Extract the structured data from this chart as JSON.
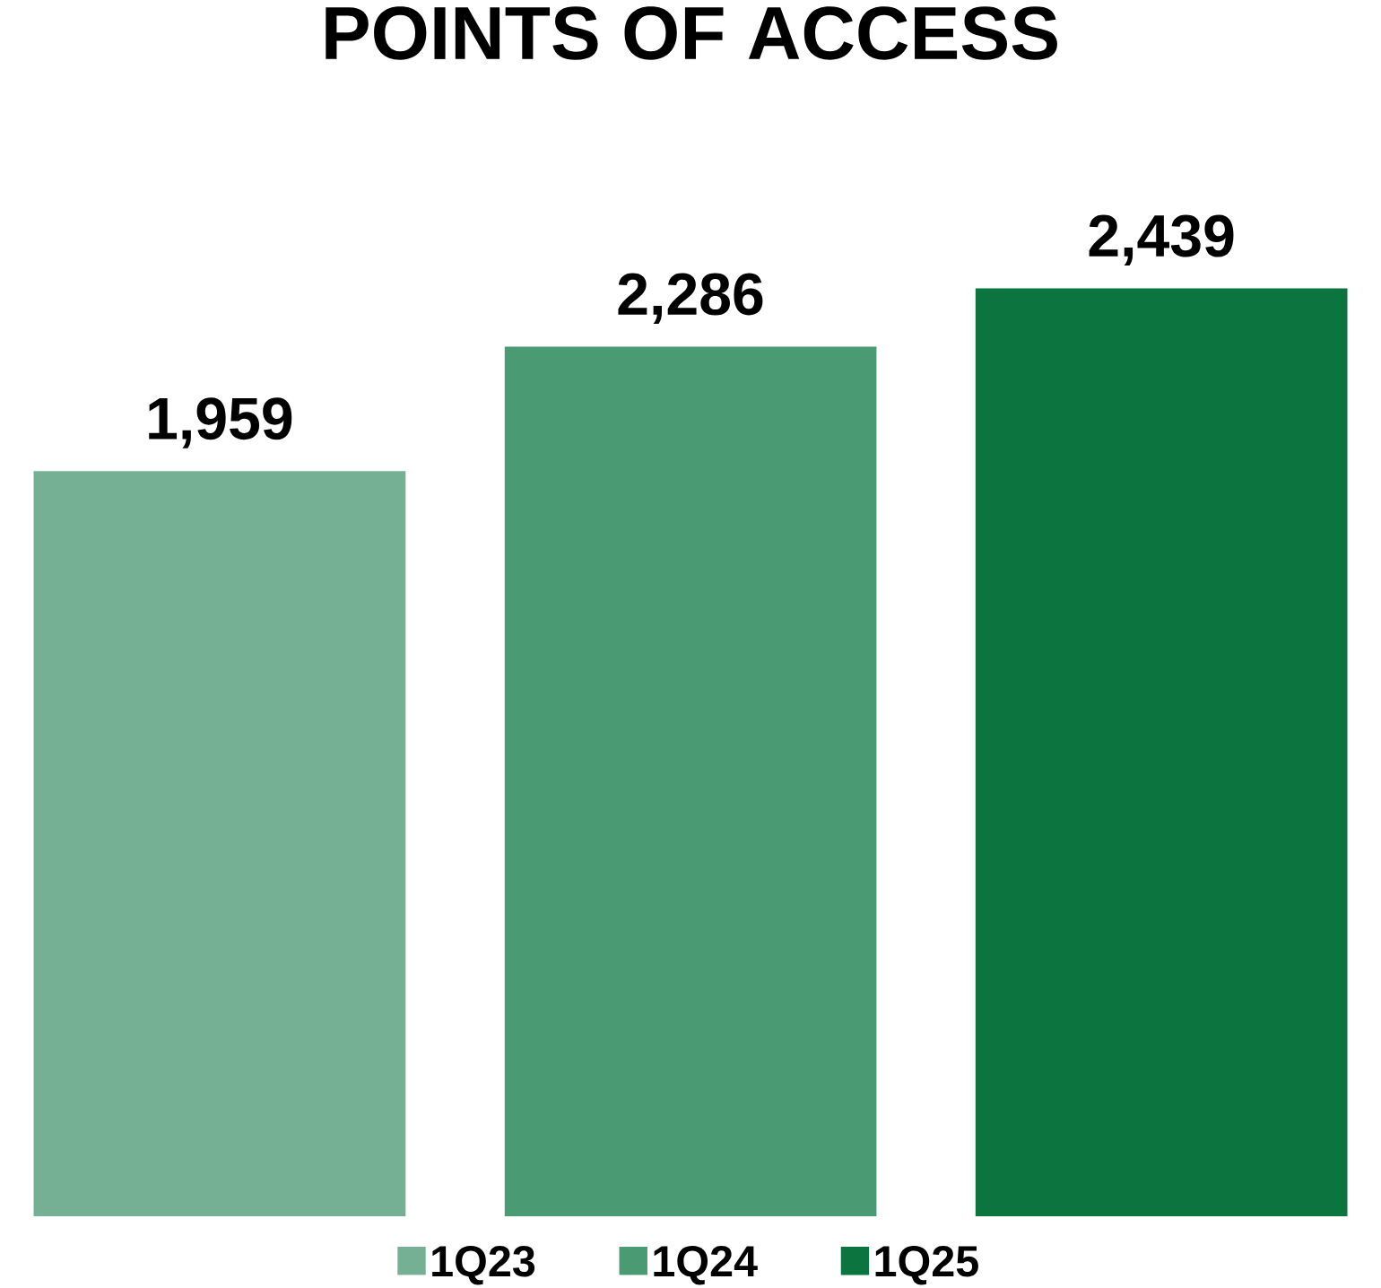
{
  "chart_data": {
    "type": "bar",
    "title": "POINTS OF ACCESS",
    "categories": [
      null
    ],
    "series": [
      {
        "name": "1Q23",
        "color": "#76b094",
        "values": [
          1959
        ],
        "value_labels": [
          "1,959"
        ]
      },
      {
        "name": "1Q24",
        "color": "#4a9a73",
        "values": [
          2286
        ],
        "value_labels": [
          "2,286"
        ]
      },
      {
        "name": "1Q25",
        "color": "#0b743f",
        "values": [
          2439
        ],
        "value_labels": [
          "2,439"
        ]
      }
    ],
    "legend": "bottom",
    "grid": false
  }
}
